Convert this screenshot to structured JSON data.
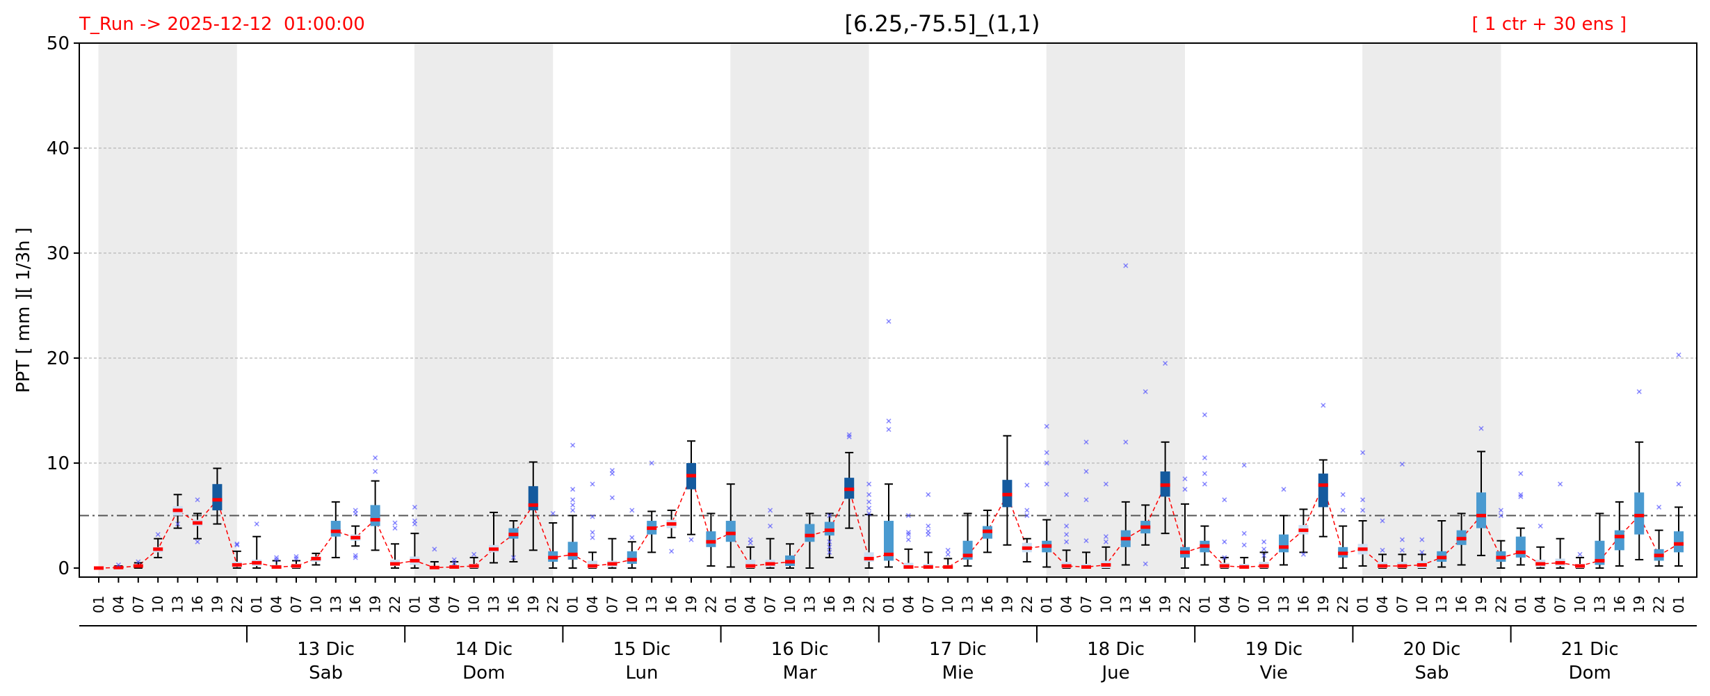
{
  "header": {
    "run_label": "T_Run -> 2025-12-12  01:00:00",
    "title": "[6.25,-75.5]_(1,1)",
    "ensemble_label": "[ 1 ctr + 30 ens ]"
  },
  "colors": {
    "header_red": "#ff0000",
    "night_band": "#ececec",
    "median": "#ff0000",
    "outlier": "#4a4aff",
    "box_light": "#cce0f4",
    "box_mid": "#4a9ad0",
    "box_dark": "#145a9e",
    "threshold_line": "#555555"
  },
  "chart_data": {
    "type": "box",
    "ylabel": "PPT  [ mm ][ 1/3h ]",
    "ylim": [
      0,
      50
    ],
    "yticks": [
      0,
      10,
      20,
      30,
      40,
      50
    ],
    "grid": "horizontal dashed",
    "threshold": 5,
    "hour_labels": [
      "01",
      "04",
      "07",
      "10",
      "13",
      "16",
      "19",
      "22"
    ],
    "days": [
      {
        "date": "",
        "weekday": ""
      },
      {
        "date": "13 Dic",
        "weekday": "Sab"
      },
      {
        "date": "14 Dic",
        "weekday": "Dom"
      },
      {
        "date": "15 Dic",
        "weekday": "Lun"
      },
      {
        "date": "16 Dic",
        "weekday": "Mar"
      },
      {
        "date": "17 Dic",
        "weekday": "Mie"
      },
      {
        "date": "18 Dic",
        "weekday": "Jue"
      },
      {
        "date": "19 Dic",
        "weekday": "Vie"
      },
      {
        "date": "20 Dic",
        "weekday": "Sab"
      },
      {
        "date": "21 Dic",
        "weekday": "Dom"
      }
    ],
    "night_bands_hours": [
      [
        1,
        7
      ],
      [
        2,
        7
      ],
      [
        3,
        7
      ],
      [
        4,
        7
      ],
      [
        5,
        7
      ],
      [
        6,
        7
      ],
      [
        7,
        7
      ],
      [
        8,
        7
      ],
      [
        9,
        1
      ]
    ],
    "series": [
      {
        "time": "12 Dic 01",
        "median": 0.0,
        "q1": 0.0,
        "q3": 0.0,
        "whisker_low": 0.0,
        "whisker_high": 0.0,
        "outliers": []
      },
      {
        "time": "12 Dic 04",
        "median": 0.05,
        "q1": 0.0,
        "q3": 0.1,
        "whisker_low": 0.0,
        "whisker_high": 0.2,
        "outliers": [
          0.3
        ]
      },
      {
        "time": "12 Dic 07",
        "median": 0.2,
        "q1": 0.1,
        "q3": 0.3,
        "whisker_low": 0.0,
        "whisker_high": 0.5,
        "outliers": [
          0.6
        ]
      },
      {
        "time": "12 Dic 10",
        "median": 1.8,
        "q1": 1.5,
        "q3": 2.0,
        "whisker_low": 1.0,
        "whisker_high": 2.8,
        "outliers": [
          3.2
        ]
      },
      {
        "time": "12 Dic 13",
        "median": 5.5,
        "q1": 5.0,
        "q3": 5.9,
        "whisker_low": 3.8,
        "whisker_high": 7.0,
        "outliers": [
          4.2
        ]
      },
      {
        "time": "12 Dic 16",
        "median": 4.3,
        "q1": 4.0,
        "q3": 4.6,
        "whisker_low": 2.8,
        "whisker_high": 5.2,
        "outliers": [
          6.5,
          2.5
        ]
      },
      {
        "time": "12 Dic 19",
        "median": 6.5,
        "q1": 5.5,
        "q3": 8.0,
        "whisker_low": 4.2,
        "whisker_high": 9.5,
        "outliers": []
      },
      {
        "time": "12 Dic 22",
        "median": 0.3,
        "q1": 0.1,
        "q3": 0.6,
        "whisker_low": 0.0,
        "whisker_high": 1.6,
        "outliers": [
          2.3,
          2.2
        ]
      },
      {
        "time": "13 Dic 01",
        "median": 0.5,
        "q1": 0.2,
        "q3": 0.8,
        "whisker_low": 0.0,
        "whisker_high": 3.0,
        "outliers": [
          4.2
        ]
      },
      {
        "time": "13 Dic 04",
        "median": 0.1,
        "q1": 0.0,
        "q3": 0.3,
        "whisker_low": 0.0,
        "whisker_high": 0.7,
        "outliers": [
          1.0,
          0.8
        ]
      },
      {
        "time": "13 Dic 07",
        "median": 0.2,
        "q1": 0.0,
        "q3": 0.4,
        "whisker_low": 0.0,
        "whisker_high": 0.7,
        "outliers": [
          1.1,
          0.9
        ]
      },
      {
        "time": "13 Dic 10",
        "median": 0.9,
        "q1": 0.6,
        "q3": 1.1,
        "whisker_low": 0.3,
        "whisker_high": 1.4,
        "outliers": []
      },
      {
        "time": "13 Dic 13",
        "median": 3.5,
        "q1": 3.0,
        "q3": 4.5,
        "whisker_low": 1.0,
        "whisker_high": 6.3,
        "outliers": []
      },
      {
        "time": "13 Dic 16",
        "median": 2.9,
        "q1": 2.6,
        "q3": 3.2,
        "whisker_low": 2.1,
        "whisker_high": 4.0,
        "outliers": [
          5.5,
          5.2,
          1.2,
          1.0
        ]
      },
      {
        "time": "13 Dic 19",
        "median": 4.6,
        "q1": 4.0,
        "q3": 6.0,
        "whisker_low": 1.7,
        "whisker_high": 8.3,
        "outliers": [
          10.5,
          9.2
        ]
      },
      {
        "time": "13 Dic 22",
        "median": 0.4,
        "q1": 0.2,
        "q3": 0.8,
        "whisker_low": 0.0,
        "whisker_high": 2.3,
        "outliers": [
          3.8,
          4.3
        ]
      },
      {
        "time": "14 Dic 01",
        "median": 0.7,
        "q1": 0.3,
        "q3": 1.1,
        "whisker_low": 0.0,
        "whisker_high": 3.3,
        "outliers": [
          5.8,
          4.5,
          4.2
        ]
      },
      {
        "time": "14 Dic 04",
        "median": 0.05,
        "q1": 0.0,
        "q3": 0.2,
        "whisker_low": 0.0,
        "whisker_high": 0.6,
        "outliers": [
          1.8
        ]
      },
      {
        "time": "14 Dic 07",
        "median": 0.1,
        "q1": 0.0,
        "q3": 0.3,
        "whisker_low": 0.0,
        "whisker_high": 0.6,
        "outliers": [
          0.8,
          0.5
        ]
      },
      {
        "time": "14 Dic 10",
        "median": 0.2,
        "q1": 0.0,
        "q3": 0.4,
        "whisker_low": 0.0,
        "whisker_high": 1.0,
        "outliers": [
          1.3
        ]
      },
      {
        "time": "14 Dic 13",
        "median": 1.8,
        "q1": 1.5,
        "q3": 2.2,
        "whisker_low": 0.5,
        "whisker_high": 5.3,
        "outliers": []
      },
      {
        "time": "14 Dic 16",
        "median": 3.2,
        "q1": 2.8,
        "q3": 3.8,
        "whisker_low": 0.6,
        "whisker_high": 4.5,
        "outliers": [
          1.0
        ]
      },
      {
        "time": "14 Dic 19",
        "median": 6.0,
        "q1": 5.5,
        "q3": 7.8,
        "whisker_low": 1.7,
        "whisker_high": 10.1,
        "outliers": []
      },
      {
        "time": "14 Dic 22",
        "median": 1.0,
        "q1": 0.6,
        "q3": 1.6,
        "whisker_low": 0.0,
        "whisker_high": 4.3,
        "outliers": [
          5.2
        ]
      },
      {
        "time": "15 Dic 01",
        "median": 1.3,
        "q1": 0.8,
        "q3": 2.5,
        "whisker_low": 0.0,
        "whisker_high": 5.0,
        "outliers": [
          11.7,
          7.5,
          6.5,
          6.0,
          5.5
        ]
      },
      {
        "time": "15 Dic 04",
        "median": 0.2,
        "q1": 0.0,
        "q3": 0.7,
        "whisker_low": 0.0,
        "whisker_high": 1.5,
        "outliers": [
          8.0,
          4.9,
          3.4,
          2.9
        ]
      },
      {
        "time": "15 Dic 07",
        "median": 0.4,
        "q1": 0.1,
        "q3": 0.7,
        "whisker_low": 0.0,
        "whisker_high": 2.8,
        "outliers": [
          9.3,
          9.0,
          6.7
        ]
      },
      {
        "time": "15 Dic 10",
        "median": 0.8,
        "q1": 0.4,
        "q3": 1.6,
        "whisker_low": 0.0,
        "whisker_high": 2.5,
        "outliers": [
          5.5,
          2.9
        ]
      },
      {
        "time": "15 Dic 13",
        "median": 3.8,
        "q1": 3.2,
        "q3": 4.5,
        "whisker_low": 1.5,
        "whisker_high": 5.4,
        "outliers": [
          10.0
        ]
      },
      {
        "time": "15 Dic 16",
        "median": 4.2,
        "q1": 3.8,
        "q3": 4.6,
        "whisker_low": 2.9,
        "whisker_high": 5.5,
        "outliers": [
          1.6
        ]
      },
      {
        "time": "15 Dic 19",
        "median": 8.8,
        "q1": 7.5,
        "q3": 10.0,
        "whisker_low": 3.2,
        "whisker_high": 12.1,
        "outliers": [
          2.7
        ]
      },
      {
        "time": "15 Dic 22",
        "median": 2.5,
        "q1": 2.0,
        "q3": 3.5,
        "whisker_low": 0.2,
        "whisker_high": 5.2,
        "outliers": []
      },
      {
        "time": "16 Dic 01",
        "median": 3.3,
        "q1": 2.5,
        "q3": 4.5,
        "whisker_low": 0.1,
        "whisker_high": 8.0,
        "outliers": []
      },
      {
        "time": "16 Dic 04",
        "median": 0.2,
        "q1": 0.0,
        "q3": 0.8,
        "whisker_low": 0.0,
        "whisker_high": 2.0,
        "outliers": [
          2.7,
          2.4
        ]
      },
      {
        "time": "16 Dic 07",
        "median": 0.4,
        "q1": 0.1,
        "q3": 0.8,
        "whisker_low": 0.0,
        "whisker_high": 2.8,
        "outliers": [
          5.5,
          4.0
        ]
      },
      {
        "time": "16 Dic 10",
        "median": 0.6,
        "q1": 0.2,
        "q3": 1.2,
        "whisker_low": 0.0,
        "whisker_high": 2.3,
        "outliers": []
      },
      {
        "time": "16 Dic 13",
        "median": 3.1,
        "q1": 2.5,
        "q3": 4.2,
        "whisker_low": 0.0,
        "whisker_high": 5.2,
        "outliers": []
      },
      {
        "time": "16 Dic 16",
        "median": 3.6,
        "q1": 3.1,
        "q3": 4.4,
        "whisker_low": 1.0,
        "whisker_high": 5.2,
        "outliers": [
          5.0,
          2.5,
          2.0,
          1.5
        ]
      },
      {
        "time": "16 Dic 19",
        "median": 7.5,
        "q1": 6.6,
        "q3": 8.6,
        "whisker_low": 3.8,
        "whisker_high": 11.0,
        "outliers": [
          12.7,
          12.5
        ]
      },
      {
        "time": "16 Dic 22",
        "median": 0.9,
        "q1": 0.6,
        "q3": 1.5,
        "whisker_low": 0.0,
        "whisker_high": 5.1,
        "outliers": [
          8.0,
          7.0,
          6.3,
          5.7,
          5.2
        ]
      },
      {
        "time": "17 Dic 01",
        "median": 1.3,
        "q1": 0.7,
        "q3": 4.5,
        "whisker_low": 0.1,
        "whisker_high": 8.0,
        "outliers": [
          23.5,
          14.0,
          13.2
        ]
      },
      {
        "time": "17 Dic 04",
        "median": 0.1,
        "q1": 0.0,
        "q3": 0.5,
        "whisker_low": 0.0,
        "whisker_high": 1.8,
        "outliers": [
          5.0,
          3.4,
          3.2,
          2.7
        ]
      },
      {
        "time": "17 Dic 07",
        "median": 0.1,
        "q1": 0.0,
        "q3": 0.4,
        "whisker_low": 0.0,
        "whisker_high": 1.5,
        "outliers": [
          7.0,
          4.0,
          3.5,
          3.2
        ]
      },
      {
        "time": "17 Dic 10",
        "median": 0.1,
        "q1": 0.0,
        "q3": 0.3,
        "whisker_low": 0.0,
        "whisker_high": 0.9,
        "outliers": [
          1.7,
          1.3
        ]
      },
      {
        "time": "17 Dic 13",
        "median": 1.2,
        "q1": 0.8,
        "q3": 2.6,
        "whisker_low": 0.2,
        "whisker_high": 5.2,
        "outliers": []
      },
      {
        "time": "17 Dic 16",
        "median": 3.5,
        "q1": 2.8,
        "q3": 4.0,
        "whisker_low": 1.5,
        "whisker_high": 5.5,
        "outliers": []
      },
      {
        "time": "17 Dic 19",
        "median": 7.0,
        "q1": 5.8,
        "q3": 8.4,
        "whisker_low": 2.2,
        "whisker_high": 12.6,
        "outliers": []
      },
      {
        "time": "17 Dic 22",
        "median": 1.9,
        "q1": 1.5,
        "q3": 2.4,
        "whisker_low": 0.6,
        "whisker_high": 2.8,
        "outliers": [
          7.9,
          5.5,
          5.0
        ]
      },
      {
        "time": "18 Dic 01",
        "median": 2.1,
        "q1": 1.5,
        "q3": 2.6,
        "whisker_low": 0.1,
        "whisker_high": 4.6,
        "outliers": [
          13.5,
          11.0,
          10.0,
          8.0
        ]
      },
      {
        "time": "18 Dic 04",
        "median": 0.2,
        "q1": 0.0,
        "q3": 0.6,
        "whisker_low": 0.0,
        "whisker_high": 1.7,
        "outliers": [
          7.0,
          4.0,
          3.2,
          2.5
        ]
      },
      {
        "time": "18 Dic 07",
        "median": 0.1,
        "q1": 0.0,
        "q3": 0.4,
        "whisker_low": 0.0,
        "whisker_high": 1.5,
        "outliers": [
          12.0,
          9.2,
          6.5,
          2.6
        ]
      },
      {
        "time": "18 Dic 10",
        "median": 0.3,
        "q1": 0.0,
        "q3": 0.7,
        "whisker_low": 0.0,
        "whisker_high": 2.0,
        "outliers": [
          8.0,
          3.0,
          2.5
        ]
      },
      {
        "time": "18 Dic 13",
        "median": 2.8,
        "q1": 2.0,
        "q3": 3.6,
        "whisker_low": 0.3,
        "whisker_high": 6.3,
        "outliers": [
          28.8,
          12.0
        ]
      },
      {
        "time": "18 Dic 16",
        "median": 3.9,
        "q1": 3.3,
        "q3": 4.5,
        "whisker_low": 2.2,
        "whisker_high": 6.0,
        "outliers": [
          16.8,
          0.4
        ]
      },
      {
        "time": "18 Dic 19",
        "median": 7.9,
        "q1": 6.8,
        "q3": 9.2,
        "whisker_low": 3.3,
        "whisker_high": 12.0,
        "outliers": [
          19.5
        ]
      },
      {
        "time": "18 Dic 22",
        "median": 1.5,
        "q1": 1.0,
        "q3": 2.0,
        "whisker_low": 0.0,
        "whisker_high": 6.1,
        "outliers": [
          8.5,
          7.5
        ]
      },
      {
        "time": "19 Dic 01",
        "median": 2.1,
        "q1": 1.5,
        "q3": 2.6,
        "whisker_low": 0.3,
        "whisker_high": 4.0,
        "outliers": [
          14.6,
          10.5,
          9.0,
          8.0
        ]
      },
      {
        "time": "19 Dic 04",
        "median": 0.2,
        "q1": 0.0,
        "q3": 0.5,
        "whisker_low": 0.0,
        "whisker_high": 1.0,
        "outliers": [
          6.5,
          2.5,
          1.0
        ]
      },
      {
        "time": "19 Dic 07",
        "median": 0.1,
        "q1": 0.0,
        "q3": 0.4,
        "whisker_low": 0.0,
        "whisker_high": 1.0,
        "outliers": [
          9.8,
          3.3,
          2.2
        ]
      },
      {
        "time": "19 Dic 10",
        "median": 0.2,
        "q1": 0.0,
        "q3": 0.6,
        "whisker_low": 0.0,
        "whisker_high": 1.5,
        "outliers": [
          2.5,
          1.8,
          1.2
        ]
      },
      {
        "time": "19 Dic 13",
        "median": 2.0,
        "q1": 1.5,
        "q3": 3.2,
        "whisker_low": 0.3,
        "whisker_high": 5.0,
        "outliers": [
          7.5
        ]
      },
      {
        "time": "19 Dic 16",
        "median": 3.6,
        "q1": 3.2,
        "q3": 4.1,
        "whisker_low": 1.5,
        "whisker_high": 5.6,
        "outliers": [
          1.3
        ]
      },
      {
        "time": "19 Dic 19",
        "median": 7.9,
        "q1": 5.8,
        "q3": 9.0,
        "whisker_low": 3.0,
        "whisker_high": 10.3,
        "outliers": [
          15.5
        ]
      },
      {
        "time": "19 Dic 22",
        "median": 1.4,
        "q1": 1.0,
        "q3": 2.0,
        "whisker_low": 0.0,
        "whisker_high": 4.0,
        "outliers": [
          7.0,
          5.5
        ]
      },
      {
        "time": "20 Dic 01",
        "median": 1.8,
        "q1": 1.3,
        "q3": 2.3,
        "whisker_low": 0.2,
        "whisker_high": 4.5,
        "outliers": [
          11.0,
          6.5,
          5.5
        ]
      },
      {
        "time": "20 Dic 04",
        "median": 0.2,
        "q1": 0.0,
        "q3": 0.6,
        "whisker_low": 0.0,
        "whisker_high": 1.3,
        "outliers": [
          4.5,
          1.7
        ]
      },
      {
        "time": "20 Dic 07",
        "median": 0.2,
        "q1": 0.0,
        "q3": 0.6,
        "whisker_low": 0.0,
        "whisker_high": 1.3,
        "outliers": [
          9.9,
          2.7,
          1.7
        ]
      },
      {
        "time": "20 Dic 10",
        "median": 0.3,
        "q1": 0.0,
        "q3": 0.7,
        "whisker_low": 0.0,
        "whisker_high": 1.3,
        "outliers": [
          2.7,
          1.5
        ]
      },
      {
        "time": "20 Dic 13",
        "median": 1.0,
        "q1": 0.6,
        "q3": 1.6,
        "whisker_low": 0.1,
        "whisker_high": 4.5,
        "outliers": []
      },
      {
        "time": "20 Dic 16",
        "median": 2.8,
        "q1": 2.2,
        "q3": 3.6,
        "whisker_low": 0.3,
        "whisker_high": 5.2,
        "outliers": []
      },
      {
        "time": "20 Dic 19",
        "median": 5.0,
        "q1": 3.8,
        "q3": 7.2,
        "whisker_low": 1.2,
        "whisker_high": 11.1,
        "outliers": [
          13.3
        ]
      },
      {
        "time": "20 Dic 22",
        "median": 1.0,
        "q1": 0.6,
        "q3": 1.6,
        "whisker_low": 0.0,
        "whisker_high": 2.6,
        "outliers": [
          5.5,
          5.0
        ]
      },
      {
        "time": "21 Dic 01",
        "median": 1.5,
        "q1": 1.0,
        "q3": 3.0,
        "whisker_low": 0.3,
        "whisker_high": 3.8,
        "outliers": [
          9.0,
          7.0,
          6.8
        ]
      },
      {
        "time": "21 Dic 04",
        "median": 0.4,
        "q1": 0.1,
        "q3": 0.8,
        "whisker_low": 0.0,
        "whisker_high": 2.0,
        "outliers": [
          4.0
        ]
      },
      {
        "time": "21 Dic 07",
        "median": 0.5,
        "q1": 0.2,
        "q3": 0.9,
        "whisker_low": 0.0,
        "whisker_high": 2.8,
        "outliers": [
          8.0
        ]
      },
      {
        "time": "21 Dic 10",
        "median": 0.2,
        "q1": 0.0,
        "q3": 0.4,
        "whisker_low": 0.0,
        "whisker_high": 1.0,
        "outliers": [
          1.3
        ]
      },
      {
        "time": "21 Dic 13",
        "median": 0.7,
        "q1": 0.3,
        "q3": 2.6,
        "whisker_low": 0.0,
        "whisker_high": 5.2,
        "outliers": []
      },
      {
        "time": "21 Dic 16",
        "median": 3.0,
        "q1": 1.7,
        "q3": 3.6,
        "whisker_low": 0.2,
        "whisker_high": 6.3,
        "outliers": []
      },
      {
        "time": "21 Dic 19",
        "median": 5.0,
        "q1": 3.2,
        "q3": 7.2,
        "whisker_low": 0.8,
        "whisker_high": 12.0,
        "outliers": [
          16.8
        ]
      },
      {
        "time": "21 Dic 22",
        "median": 1.2,
        "q1": 0.7,
        "q3": 1.8,
        "whisker_low": 0.2,
        "whisker_high": 3.6,
        "outliers": [
          5.8
        ]
      },
      {
        "time": "22 Dic 01",
        "median": 2.3,
        "q1": 1.5,
        "q3": 3.5,
        "whisker_low": 0.2,
        "whisker_high": 5.8,
        "outliers": [
          20.3,
          8.0
        ]
      }
    ]
  }
}
